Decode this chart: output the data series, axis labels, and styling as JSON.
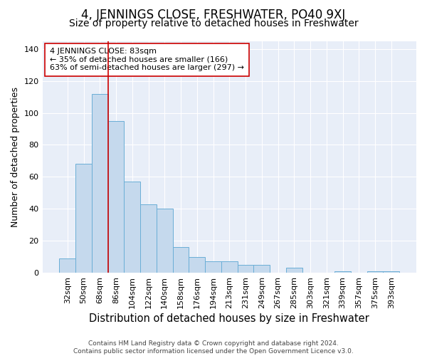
{
  "title": "4, JENNINGS CLOSE, FRESHWATER, PO40 9XJ",
  "subtitle": "Size of property relative to detached houses in Freshwater",
  "xlabel": "Distribution of detached houses by size in Freshwater",
  "ylabel": "Number of detached properties",
  "categories": [
    "32sqm",
    "50sqm",
    "68sqm",
    "86sqm",
    "104sqm",
    "122sqm",
    "140sqm",
    "158sqm",
    "176sqm",
    "194sqm",
    "213sqm",
    "231sqm",
    "249sqm",
    "267sqm",
    "285sqm",
    "303sqm",
    "321sqm",
    "339sqm",
    "357sqm",
    "375sqm",
    "393sqm"
  ],
  "values": [
    9,
    68,
    112,
    95,
    57,
    43,
    40,
    16,
    10,
    7,
    7,
    5,
    5,
    0,
    3,
    0,
    0,
    1,
    0,
    1,
    1
  ],
  "bar_color": "#c5d9ed",
  "bar_edge_color": "#6aaed6",
  "vline_index": 3,
  "vline_color": "#cc0000",
  "annotation_line1": "4 JENNINGS CLOSE: 83sqm",
  "annotation_line2": "← 35% of detached houses are smaller (166)",
  "annotation_line3": "63% of semi-detached houses are larger (297) →",
  "annotation_box_color": "white",
  "annotation_box_edge_color": "#cc0000",
  "ylim": [
    0,
    145
  ],
  "yticks": [
    0,
    20,
    40,
    60,
    80,
    100,
    120,
    140
  ],
  "background_color": "#e8eef8",
  "grid_color": "white",
  "footer": "Contains HM Land Registry data © Crown copyright and database right 2024.\nContains public sector information licensed under the Open Government Licence v3.0.",
  "title_fontsize": 12,
  "subtitle_fontsize": 10,
  "xlabel_fontsize": 10.5,
  "ylabel_fontsize": 9,
  "tick_fontsize": 8,
  "annotation_fontsize": 8,
  "footer_fontsize": 6.5
}
